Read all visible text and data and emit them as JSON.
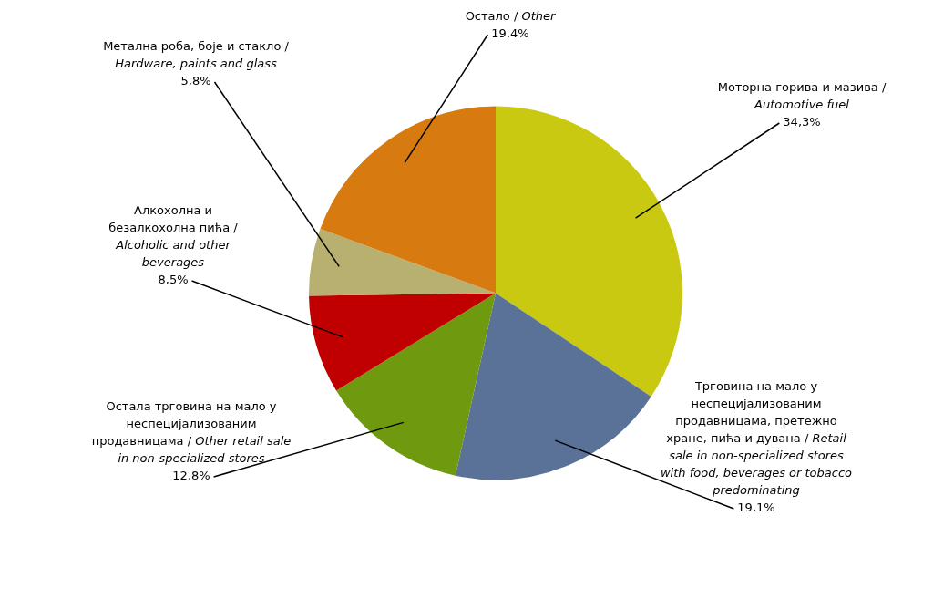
{
  "chart_data": {
    "type": "pie",
    "categories": [
      "Моторна горива и мазива / Automotive fuel",
      "Трговина на мало у неспецијализованим продавницама, претежно хране, пића и дувана / Retail sale in non-specialized stores with food, beverages or tobacco predominating",
      "Остала трговина на мало у неспецијализованим продавницама / Other retail sale in non-specialized stores",
      "Алкохолна и безалкохолна пића / Alcoholic and other beverages",
      "Метална роба, боје и стакло / Hardware, paints and glass",
      "Остало / Other"
    ],
    "values": [
      34.3,
      19.1,
      12.8,
      8.5,
      5.8,
      19.4
    ],
    "value_labels": [
      "34,3%",
      "19,1%",
      "12,8%",
      "8,5%",
      "5,8%",
      "19,4%"
    ],
    "colors": [
      "#c9c912",
      "#5a7298",
      "#6f9a10",
      "#c00000",
      "#b8b070",
      "#d77a10"
    ],
    "legend": false
  }
}
